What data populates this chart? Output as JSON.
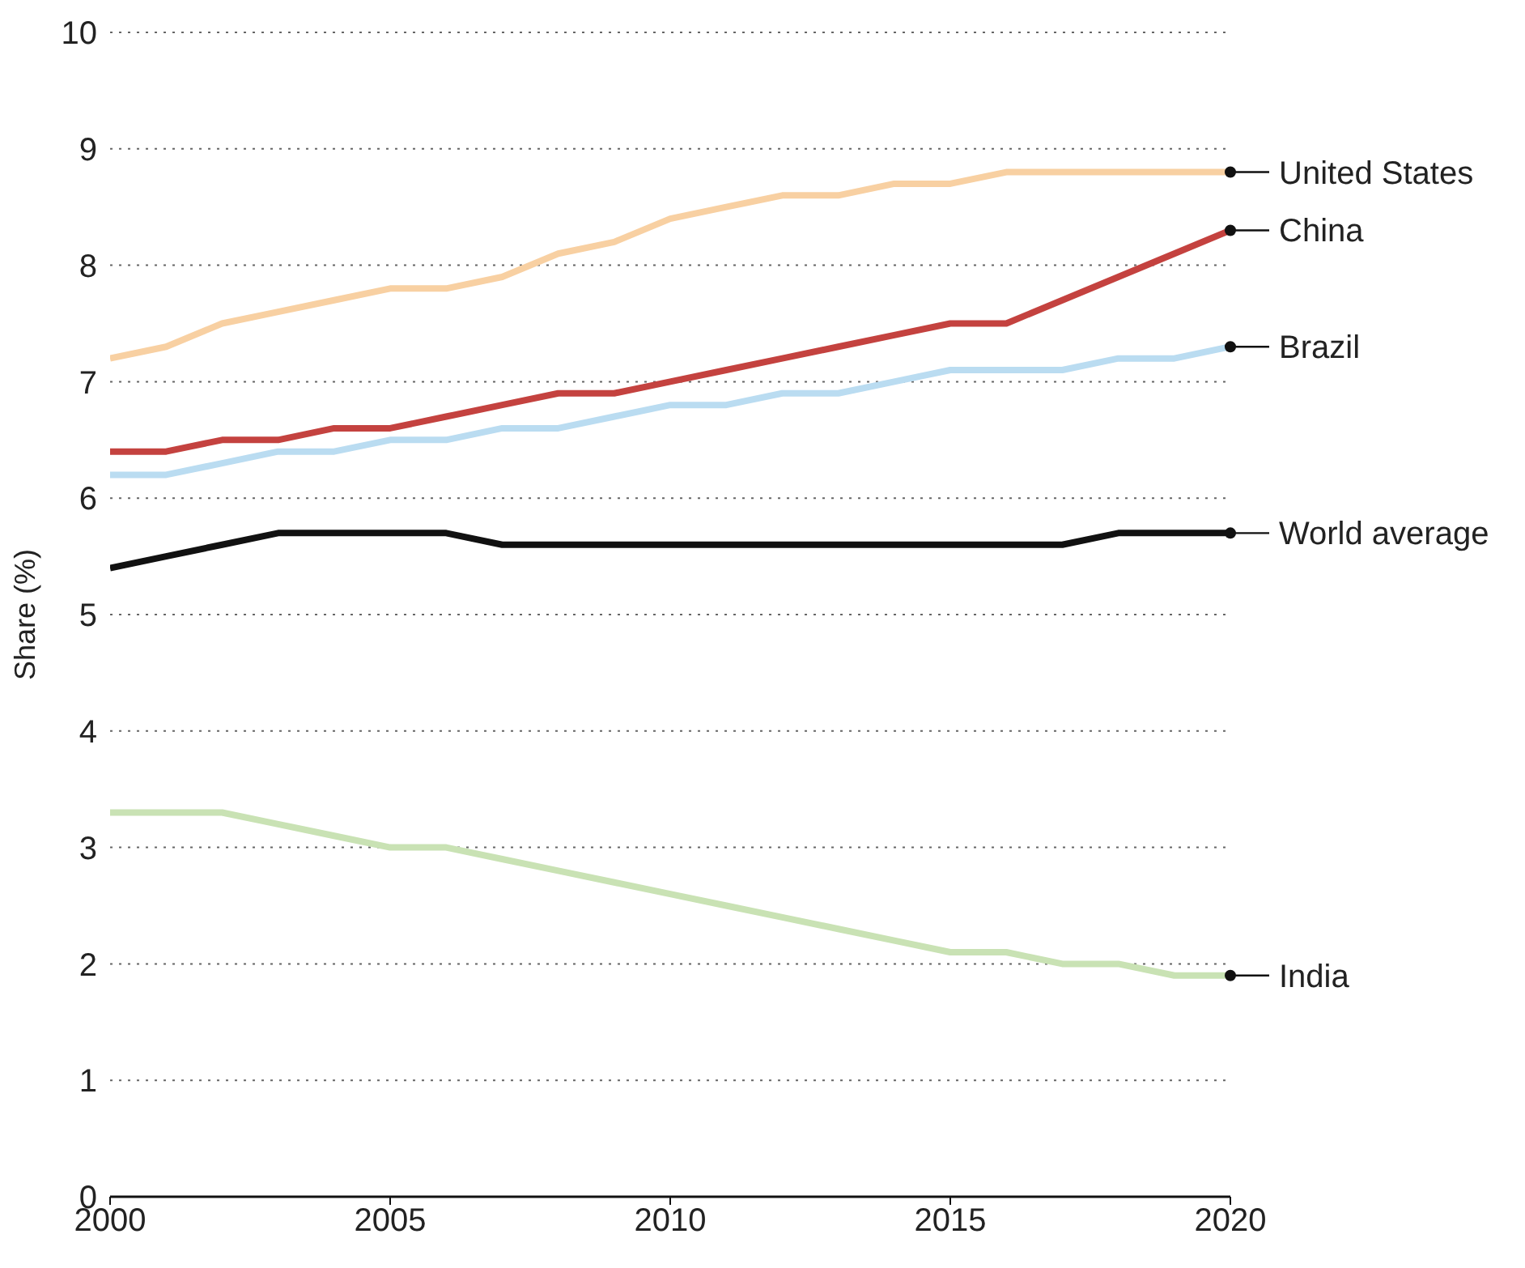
{
  "chart_data": {
    "type": "line",
    "ylabel": "Share (%)",
    "x": [
      2000,
      2001,
      2002,
      2003,
      2004,
      2005,
      2006,
      2007,
      2008,
      2009,
      2010,
      2011,
      2012,
      2013,
      2014,
      2015,
      2016,
      2017,
      2018,
      2019,
      2020
    ],
    "series": [
      {
        "name": "United States",
        "color": "#f8d0a2",
        "values": [
          7.2,
          7.3,
          7.5,
          7.6,
          7.7,
          7.8,
          7.8,
          7.9,
          8.1,
          8.2,
          8.4,
          8.5,
          8.6,
          8.6,
          8.7,
          8.7,
          8.8,
          8.8,
          8.8,
          8.8,
          8.8
        ]
      },
      {
        "name": "China",
        "color": "#c4423f",
        "values": [
          6.4,
          6.4,
          6.5,
          6.5,
          6.6,
          6.6,
          6.7,
          6.8,
          6.9,
          6.9,
          7.0,
          7.1,
          7.2,
          7.3,
          7.4,
          7.5,
          7.5,
          7.7,
          7.9,
          8.1,
          8.3
        ]
      },
      {
        "name": "Brazil",
        "color": "#badcf1",
        "values": [
          6.2,
          6.2,
          6.3,
          6.4,
          6.4,
          6.5,
          6.5,
          6.6,
          6.6,
          6.7,
          6.8,
          6.8,
          6.9,
          6.9,
          7.0,
          7.1,
          7.1,
          7.1,
          7.2,
          7.2,
          7.3
        ]
      },
      {
        "name": "World average",
        "color": "#111111",
        "values": [
          5.4,
          5.5,
          5.6,
          5.7,
          5.7,
          5.7,
          5.7,
          5.6,
          5.6,
          5.6,
          5.6,
          5.6,
          5.6,
          5.6,
          5.6,
          5.6,
          5.6,
          5.6,
          5.7,
          5.7,
          5.7
        ]
      },
      {
        "name": "India",
        "color": "#c9e2b4",
        "values": [
          3.3,
          3.3,
          3.3,
          3.2,
          3.1,
          3.0,
          3.0,
          2.9,
          2.8,
          2.7,
          2.6,
          2.5,
          2.4,
          2.3,
          2.2,
          2.1,
          2.1,
          2.0,
          2.0,
          1.9,
          1.9
        ]
      }
    ],
    "xlim": [
      2000,
      2020
    ],
    "xticks": [
      2000,
      2005,
      2010,
      2015,
      2020
    ],
    "ylim": [
      0,
      10
    ],
    "yticks": [
      0,
      1,
      2,
      3,
      4,
      5,
      6,
      7,
      8,
      9,
      10
    ],
    "grid": "y",
    "legend": "right",
    "marker": "none",
    "line_style": "solid"
  }
}
